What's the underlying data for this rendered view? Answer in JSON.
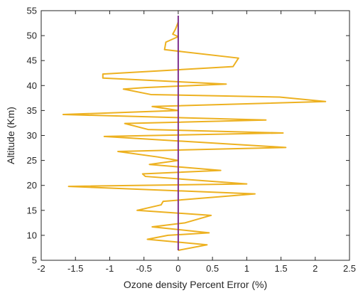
{
  "chart_data": {
    "type": "line",
    "title": "",
    "xlabel": "Ozone density Percent Error (%)",
    "ylabel": "Altitude (Km)",
    "xlim": [
      -2,
      2.5
    ],
    "ylim": [
      5,
      55
    ],
    "grid": false,
    "box": true,
    "xticks": [
      {
        "value": -2,
        "label": "-2"
      },
      {
        "value": -1.5,
        "label": "-1.5"
      },
      {
        "value": -1,
        "label": "-1"
      },
      {
        "value": -0.5,
        "label": "-0.5"
      },
      {
        "value": 0,
        "label": "0"
      },
      {
        "value": 0.5,
        "label": "0.5"
      },
      {
        "value": 1,
        "label": "1"
      },
      {
        "value": 1.5,
        "label": "1.5"
      },
      {
        "value": 2,
        "label": "2"
      },
      {
        "value": 2.5,
        "label": "2.5"
      }
    ],
    "yticks": [
      {
        "value": 5,
        "label": "5"
      },
      {
        "value": 10,
        "label": "10"
      },
      {
        "value": 15,
        "label": "15"
      },
      {
        "value": 20,
        "label": "20"
      },
      {
        "value": 25,
        "label": "25"
      },
      {
        "value": 30,
        "label": "30"
      },
      {
        "value": 35,
        "label": "35"
      },
      {
        "value": 40,
        "label": "40"
      },
      {
        "value": 45,
        "label": "45"
      },
      {
        "value": 50,
        "label": "50"
      },
      {
        "value": 55,
        "label": "55"
      }
    ],
    "series": [
      {
        "color": "#EDB120",
        "points": [
          [
            0.0,
            7.0
          ],
          [
            0.42,
            8.1
          ],
          [
            -0.45,
            9.2
          ],
          [
            -0.15,
            10.0
          ],
          [
            0.45,
            10.5
          ],
          [
            -0.38,
            11.7
          ],
          [
            0.1,
            12.5
          ],
          [
            0.48,
            14.0
          ],
          [
            -0.6,
            15.0
          ],
          [
            -0.25,
            16.1
          ],
          [
            -0.22,
            16.8
          ],
          [
            1.12,
            18.3
          ],
          [
            -1.6,
            19.8
          ],
          [
            1.0,
            20.3
          ],
          [
            -0.48,
            21.8
          ],
          [
            -0.52,
            22.3
          ],
          [
            0.62,
            23.0
          ],
          [
            -0.42,
            24.2
          ],
          [
            0.0,
            25.0
          ],
          [
            -0.3,
            25.7
          ],
          [
            -0.88,
            26.8
          ],
          [
            1.57,
            27.6
          ],
          [
            -1.08,
            29.8
          ],
          [
            1.53,
            30.5
          ],
          [
            -0.44,
            31.2
          ],
          [
            -0.78,
            32.4
          ],
          [
            1.28,
            33.1
          ],
          [
            -1.68,
            34.2
          ],
          [
            0.0,
            35.0
          ],
          [
            -0.38,
            35.8
          ],
          [
            2.15,
            36.8
          ],
          [
            1.48,
            37.7
          ],
          [
            -0.4,
            38.2
          ],
          [
            -0.8,
            39.3
          ],
          [
            -0.48,
            39.6
          ],
          [
            0.7,
            40.3
          ],
          [
            -1.1,
            41.5
          ],
          [
            -1.1,
            42.3
          ],
          [
            0.8,
            43.8
          ],
          [
            0.88,
            45.5
          ],
          [
            -0.2,
            47.2
          ],
          [
            -0.18,
            48.7
          ],
          [
            0.0,
            49.8
          ],
          [
            -0.08,
            50.3
          ],
          [
            -0.04,
            51.3
          ],
          [
            0.0,
            52.7
          ]
        ]
      },
      {
        "color": "#7E2F8E",
        "points": [
          [
            0.0,
            7.0
          ],
          [
            0.0,
            54.0
          ]
        ]
      }
    ]
  }
}
